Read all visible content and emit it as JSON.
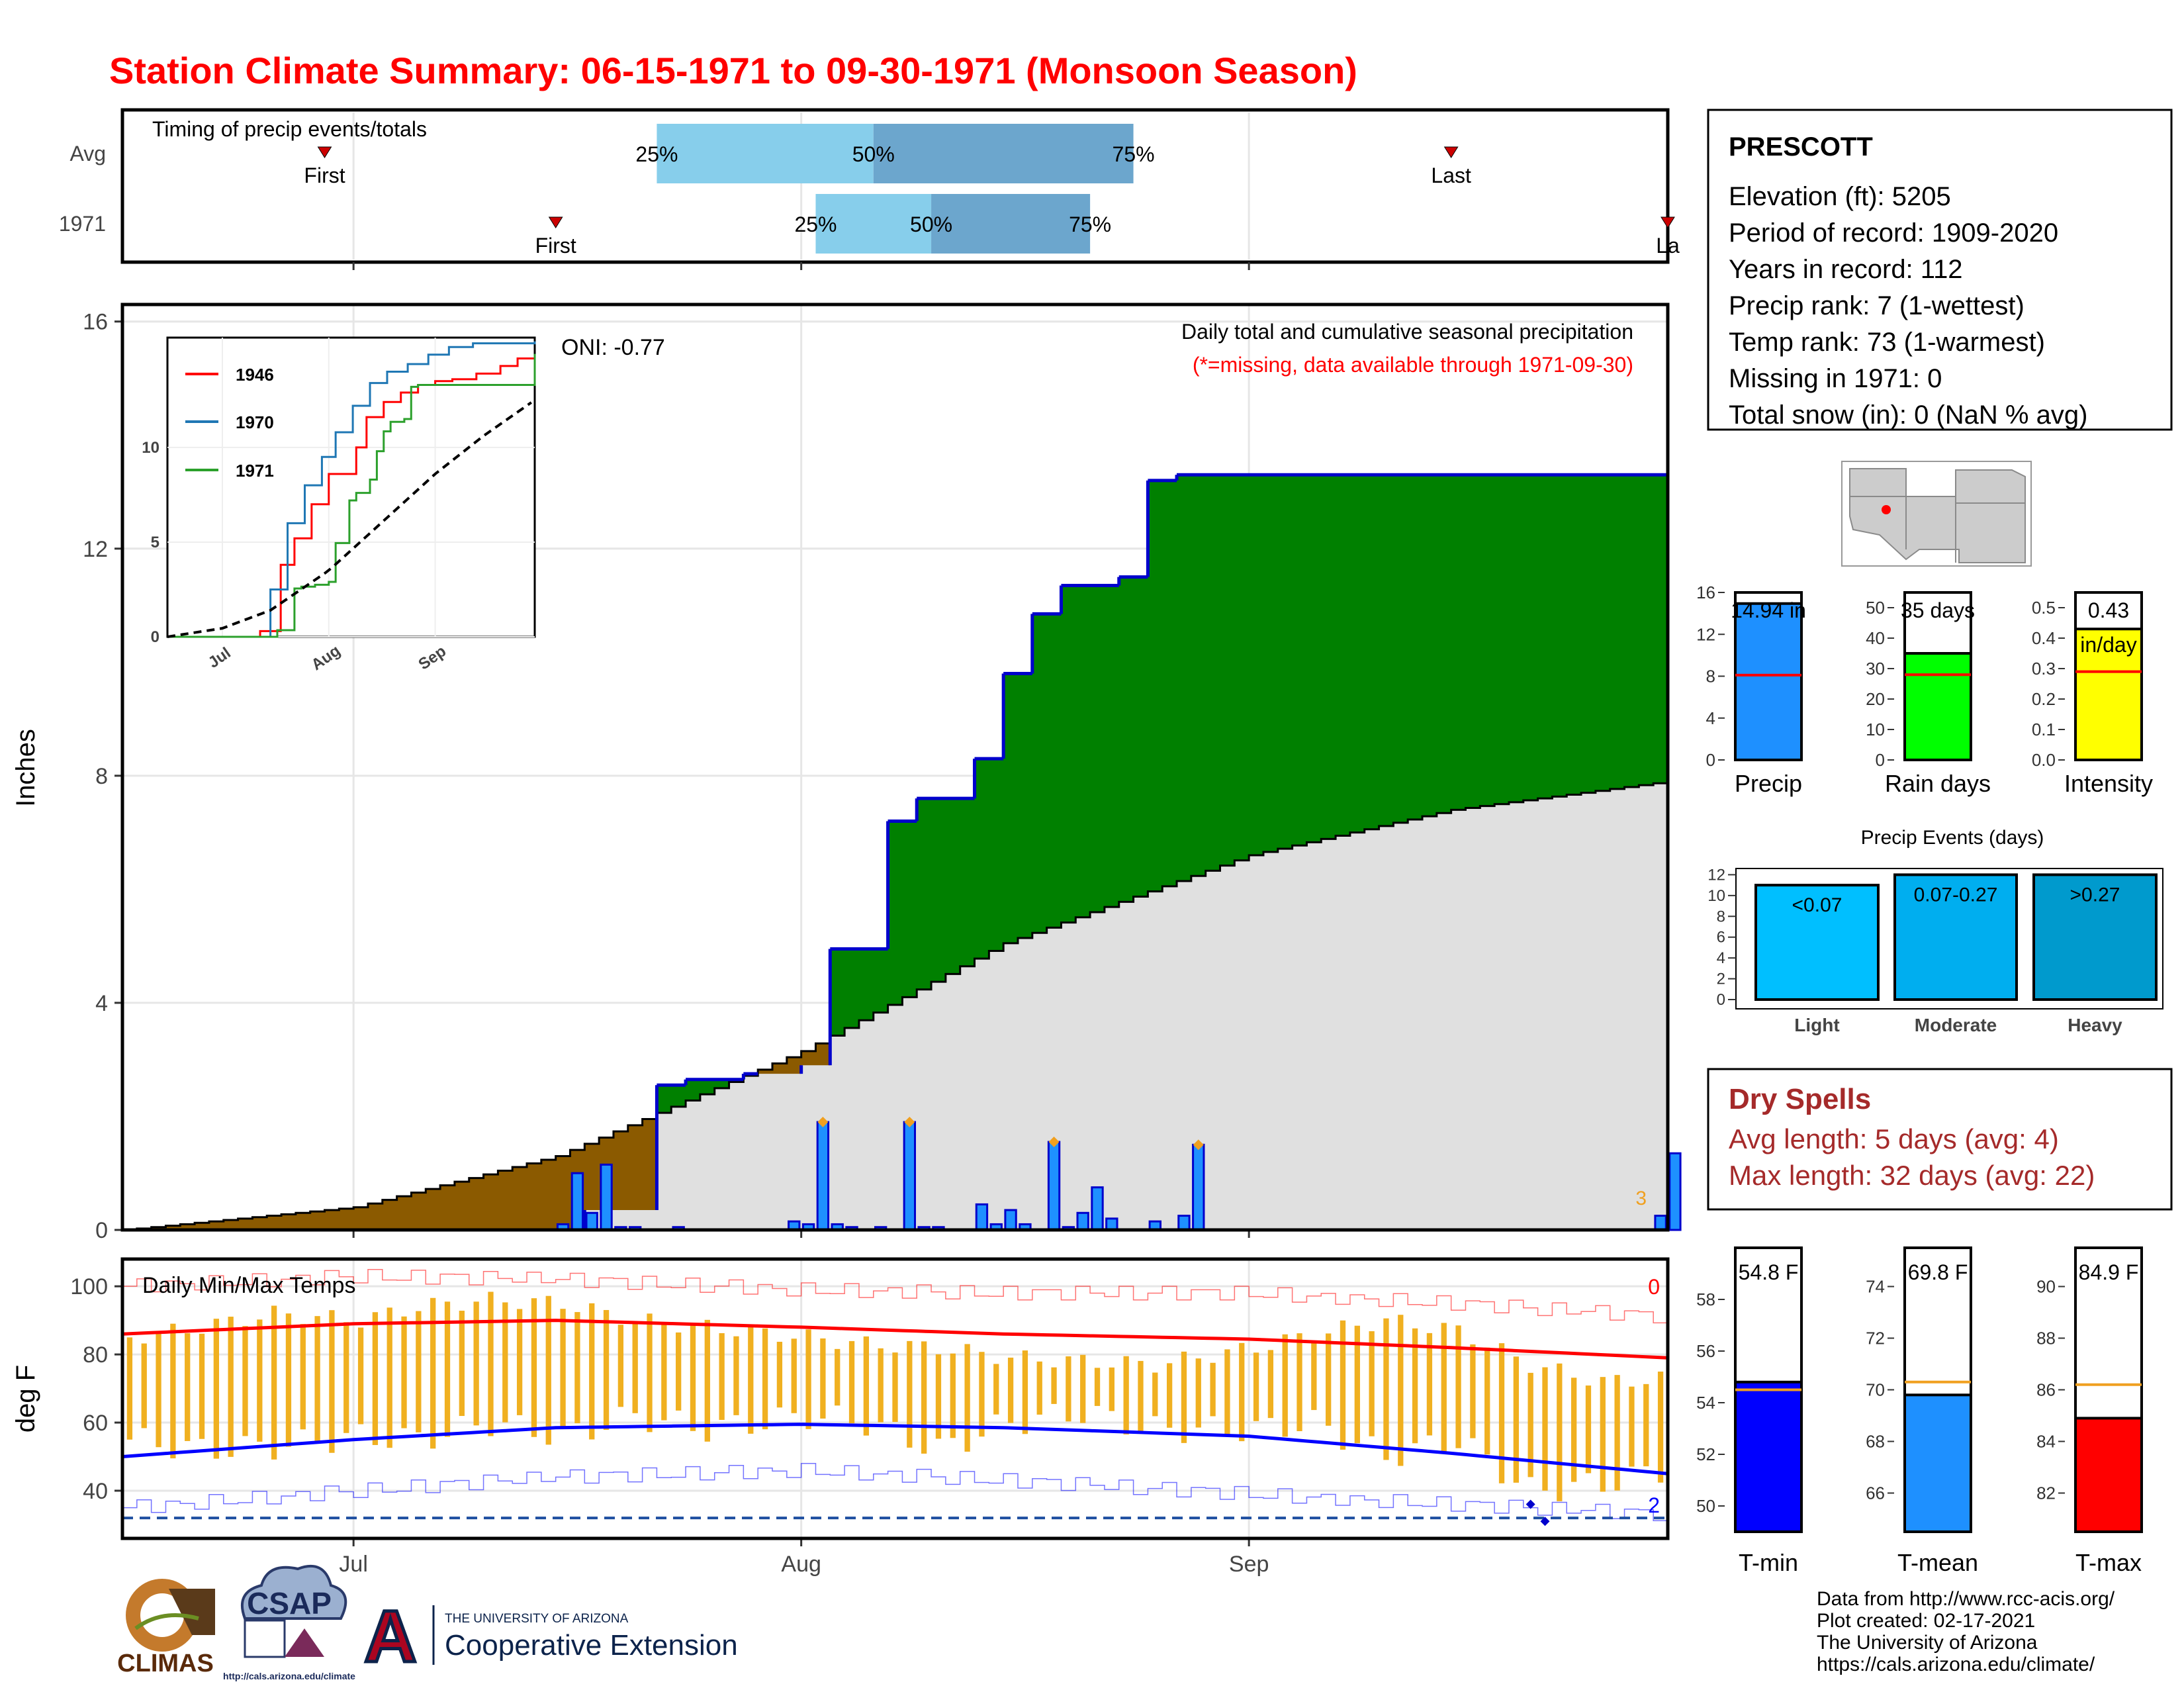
{
  "title": "Station Climate Summary: 06-15-1971 to 09-30-1971 (Monsoon Season)",
  "colors": {
    "title": "#ff0000",
    "precip_obs": "#008000",
    "precip_deficit": "#8B5A00",
    "precip_avg_area": "#e0e0e0",
    "daily_bar": "#1E90FF",
    "avg_line": "#ff0000",
    "q_light": "#87CEEB",
    "q_dark": "#6CA6CD",
    "tmax": "#ff0000",
    "tmin": "#0000ff",
    "temp_range": "#F0B020",
    "dry_spells": "#A52A2A"
  },
  "timing": {
    "title": "Timing of precip events/totals",
    "rows": [
      {
        "label": "Avg",
        "first_label": "First",
        "last_label": "Last",
        "first": "06-29",
        "last": "09-15",
        "q25": "07-22",
        "q50": "08-06",
        "q75": "08-24",
        "q25_label": "25%",
        "q50_label": "50%",
        "q75_label": "75%"
      },
      {
        "label": "1971",
        "first_label": "First",
        "last_label": "La",
        "first": "07-15",
        "last": "09-30",
        "q25": "08-02",
        "q50": "08-10",
        "q75": "08-21",
        "q25_label": "25%",
        "q50_label": "50%",
        "q75_label": "75%"
      }
    ]
  },
  "precip_panel": {
    "ylabel": "Inches",
    "oni": "ONI: -0.77",
    "caption": "Daily total and cumulative seasonal precipitation",
    "missing_note": "(*=missing, data available through 1971-09-30)",
    "last_bar_label": "3",
    "yticks": [
      "0",
      "4",
      "8",
      "12",
      "16"
    ],
    "x_months": [
      "Jul",
      "Aug",
      "Sep"
    ]
  },
  "inset": {
    "years": [
      "1946",
      "1970",
      "1971"
    ],
    "year_colors": [
      "#ff0000",
      "#1f77b4",
      "#2ca02c"
    ],
    "yticks": [
      "0",
      "5",
      "10"
    ],
    "x_months": [
      "Jul",
      "Aug",
      "Sep"
    ]
  },
  "temp_panel": {
    "ylabel": "deg F",
    "title": "Daily Min/Max Temps",
    "count_hot": "0",
    "count_cold": "2",
    "yticks": [
      "40",
      "60",
      "80",
      "100"
    ]
  },
  "station": {
    "name": "PRESCOTT",
    "lines": [
      "Elevation (ft): 5205",
      "Period of record: 1909-2020",
      "Years in record: 112",
      "Precip rank: 7 (1-wettest)",
      "Temp rank: 73 (1-warmest)",
      "Missing in 1971: 0",
      "Total snow (in): 0 (NaN % avg)"
    ]
  },
  "summary_bars": [
    {
      "label": "Precip",
      "value_text": "14.94 in",
      "value": 14.94,
      "avg": 8.1,
      "ymax": 16,
      "yticks": [
        "0",
        "4",
        "8",
        "12",
        "16"
      ],
      "color": "#1E90FF"
    },
    {
      "label": "Rain days",
      "value_text": "35 days",
      "value": 35,
      "avg": 28,
      "ymax": 55,
      "yticks": [
        "0",
        "10",
        "20",
        "30",
        "40",
        "50"
      ],
      "color": "#00ff00"
    },
    {
      "label": "Intensity",
      "value_text": "0.43",
      "value_text2": "in/day",
      "value": 0.43,
      "avg": 0.29,
      "ymax": 0.55,
      "yticks": [
        "0.0",
        "0.1",
        "0.2",
        "0.3",
        "0.4",
        "0.5"
      ],
      "color": "#ffff00"
    }
  ],
  "precip_events": {
    "title": "Precip Events (days)",
    "yticks": [
      "0",
      "2",
      "4",
      "6",
      "8",
      "10",
      "12"
    ],
    "bars": [
      {
        "label": "Light",
        "range": "<0.07",
        "value": 11,
        "color": "#00BFFF"
      },
      {
        "label": "Moderate",
        "range": "0.07-0.27",
        "value": 12,
        "color": "#00AEEF"
      },
      {
        "label": "Heavy",
        "range": ">0.27",
        "value": 12,
        "color": "#009ACD"
      }
    ]
  },
  "dry_spells": {
    "title": "Dry Spells",
    "avg_line": "Avg length: 5 days (avg: 4)",
    "max_line": "Max length: 32 days (avg: 22)"
  },
  "temp_bars": [
    {
      "label": "T-min",
      "value_text": "54.8 F",
      "value": 54.8,
      "avg": 54.5,
      "ymin": 49,
      "ymax": 60,
      "yticks": [
        "50",
        "52",
        "54",
        "56",
        "58"
      ],
      "color": "#0000ff"
    },
    {
      "label": "T-mean",
      "value_text": "69.8 F",
      "value": 69.8,
      "avg": 70.3,
      "ymin": 64.5,
      "ymax": 75.5,
      "yticks": [
        "66",
        "68",
        "70",
        "72",
        "74"
      ],
      "color": "#1E90FF"
    },
    {
      "label": "T-max",
      "value_text": "84.9 F",
      "value": 84.9,
      "avg": 86.2,
      "ymin": 80.5,
      "ymax": 91.5,
      "yticks": [
        "82",
        "84",
        "86",
        "88",
        "90"
      ],
      "color": "#ff0000"
    }
  ],
  "credits": [
    "Data from http://www.rcc-acis.org/",
    "Plot created: 02-17-2021",
    "The University of Arizona",
    "https://cals.arizona.edu/climate/"
  ],
  "logos": {
    "climas": "CLIMAS",
    "csap": "CSAP",
    "csap_url": "http://cals.arizona.edu/climate",
    "ua_small": "THE UNIVERSITY OF ARIZONA",
    "ua_big": "Cooperative Extension",
    "ua_letter": "A"
  },
  "chart_data": [
    {
      "type": "area",
      "title": "Daily total and cumulative seasonal precipitation",
      "ylabel": "Inches",
      "ylim": [
        0,
        16
      ],
      "x_range": [
        "06-15",
        "09-30"
      ],
      "cumulative_observed": {
        "x": [
          "06-15",
          "07-15",
          "07-17",
          "07-22",
          "07-24",
          "07-28",
          "08-01",
          "08-03",
          "08-07",
          "08-09",
          "08-13",
          "08-15",
          "08-17",
          "08-19",
          "08-23",
          "08-25",
          "08-27",
          "08-29",
          "09-03",
          "09-30"
        ],
        "y": [
          0.0,
          0.0,
          0.35,
          2.55,
          2.65,
          2.75,
          2.9,
          4.95,
          7.2,
          7.6,
          8.3,
          9.8,
          10.85,
          11.35,
          11.5,
          13.2,
          13.3,
          13.3,
          13.3,
          14.94
        ]
      },
      "cumulative_average": {
        "x": [
          "06-15",
          "07-01",
          "07-15",
          "08-01",
          "08-15",
          "09-01",
          "09-15",
          "09-30"
        ],
        "y": [
          0.0,
          0.4,
          1.3,
          3.15,
          5.05,
          6.6,
          7.4,
          7.9
        ]
      },
      "daily_precip": {
        "x": [
          "07-15",
          "07-16",
          "07-17",
          "07-18",
          "07-19",
          "07-20",
          "07-23",
          "07-31",
          "08-01",
          "08-02",
          "08-03",
          "08-04",
          "08-06",
          "08-08",
          "08-09",
          "08-10",
          "08-13",
          "08-14",
          "08-15",
          "08-16",
          "08-18",
          "08-19",
          "08-20",
          "08-21",
          "08-22",
          "08-25",
          "08-27",
          "08-28",
          "09-29",
          "09-30"
        ],
        "y": [
          0.1,
          1.0,
          0.3,
          1.15,
          0.05,
          0.05,
          0.05,
          0.15,
          0.1,
          1.9,
          0.1,
          0.05,
          0.05,
          1.9,
          0.05,
          0.05,
          0.45,
          0.1,
          0.35,
          0.1,
          1.55,
          0.05,
          0.3,
          0.75,
          0.2,
          0.15,
          0.25,
          1.5,
          0.25,
          1.35
        ]
      },
      "annotation": "ONI: -0.77"
    },
    {
      "type": "line",
      "title": "",
      "series": [
        {
          "name": "1946",
          "x": [
            "06-15",
            "07-10",
            "07-12",
            "07-18",
            "07-22",
            "07-27",
            "08-01",
            "08-05",
            "08-09",
            "08-12",
            "08-17",
            "08-22",
            "08-27",
            "09-01",
            "09-06",
            "09-13",
            "09-20",
            "09-25",
            "09-30"
          ],
          "y": [
            0,
            0,
            0.3,
            3.8,
            5.2,
            7.0,
            8.6,
            8.6,
            10.0,
            11.6,
            12.4,
            12.9,
            13.3,
            13.5,
            13.6,
            13.9,
            14.3,
            14.7,
            14.9
          ]
        },
        {
          "name": "1970",
          "x": [
            "06-15",
            "07-12",
            "07-15",
            "07-20",
            "07-25",
            "07-30",
            "08-03",
            "08-08",
            "08-13",
            "08-18",
            "08-24",
            "08-30",
            "09-05",
            "09-12",
            "09-20",
            "09-30"
          ],
          "y": [
            0,
            0,
            2.5,
            6.0,
            8.0,
            9.5,
            10.8,
            12.2,
            13.4,
            14.0,
            14.4,
            14.9,
            15.3,
            15.5,
            15.5,
            15.6
          ]
        },
        {
          "name": "1971",
          "x": [
            "06-15",
            "07-15",
            "07-17",
            "07-22",
            "07-24",
            "07-28",
            "08-01",
            "08-03",
            "08-07",
            "08-09",
            "08-13",
            "08-15",
            "08-17",
            "08-19",
            "08-23",
            "08-25",
            "08-27",
            "09-03",
            "09-30"
          ],
          "y": [
            0,
            0,
            0.35,
            2.55,
            2.65,
            2.75,
            2.9,
            4.95,
            7.2,
            7.6,
            8.3,
            9.8,
            10.85,
            11.35,
            11.5,
            13.2,
            13.3,
            13.3,
            14.94
          ]
        },
        {
          "name": "average",
          "x": [
            "06-15",
            "07-01",
            "07-15",
            "08-01",
            "08-15",
            "09-01",
            "09-15",
            "09-30"
          ],
          "y": [
            0,
            0.45,
            1.4,
            3.5,
            5.8,
            8.6,
            10.6,
            12.5
          ]
        }
      ],
      "ylim": [
        0,
        16
      ]
    },
    {
      "type": "line",
      "title": "Daily Min/Max Temps",
      "ylabel": "deg F",
      "ylim": [
        26,
        108
      ],
      "series": [
        {
          "name": "avg_max",
          "x": [
            "06-15",
            "07-01",
            "07-15",
            "08-01",
            "08-15",
            "09-01",
            "09-15",
            "09-30"
          ],
          "y": [
            86,
            89,
            90,
            88,
            86,
            84.5,
            82,
            79
          ]
        },
        {
          "name": "avg_min",
          "x": [
            "06-15",
            "07-01",
            "07-15",
            "08-01",
            "08-15",
            "09-01",
            "09-15",
            "09-30"
          ],
          "y": [
            50,
            55,
            58.5,
            59.5,
            58.5,
            56,
            51,
            45
          ]
        },
        {
          "name": "record_max",
          "x": [
            "06-15",
            "07-01",
            "07-15",
            "08-01",
            "08-15",
            "09-01",
            "09-15",
            "09-30"
          ],
          "y": [
            100,
            103,
            102,
            99,
            98,
            98,
            95,
            91
          ]
        },
        {
          "name": "record_min",
          "x": [
            "06-15",
            "07-01",
            "07-15",
            "08-01",
            "08-15",
            "09-01",
            "09-15",
            "09-30"
          ],
          "y": [
            35,
            40,
            44,
            46,
            43,
            39,
            36,
            33
          ]
        }
      ],
      "daily_range": {
        "x": [
          "06-15",
          "06-20",
          "06-25",
          "07-01",
          "07-05",
          "07-10",
          "07-15",
          "07-20",
          "07-25",
          "08-01",
          "08-05",
          "08-10",
          "08-15",
          "08-20",
          "08-25",
          "09-01",
          "09-05",
          "09-10",
          "09-15",
          "09-20",
          "09-25",
          "09-30"
        ],
        "tmin": [
          55,
          52,
          53,
          56,
          55,
          60,
          56,
          62,
          58,
          62,
          60,
          52,
          60,
          63,
          58,
          58,
          60,
          50,
          55,
          40,
          42,
          47
        ],
        "tmax": [
          85,
          88,
          92,
          90,
          94,
          96,
          95,
          90,
          88,
          85,
          83,
          82,
          79,
          78,
          77,
          82,
          86,
          90,
          87,
          77,
          72,
          73
        ]
      },
      "freeze_line": 32
    }
  ]
}
